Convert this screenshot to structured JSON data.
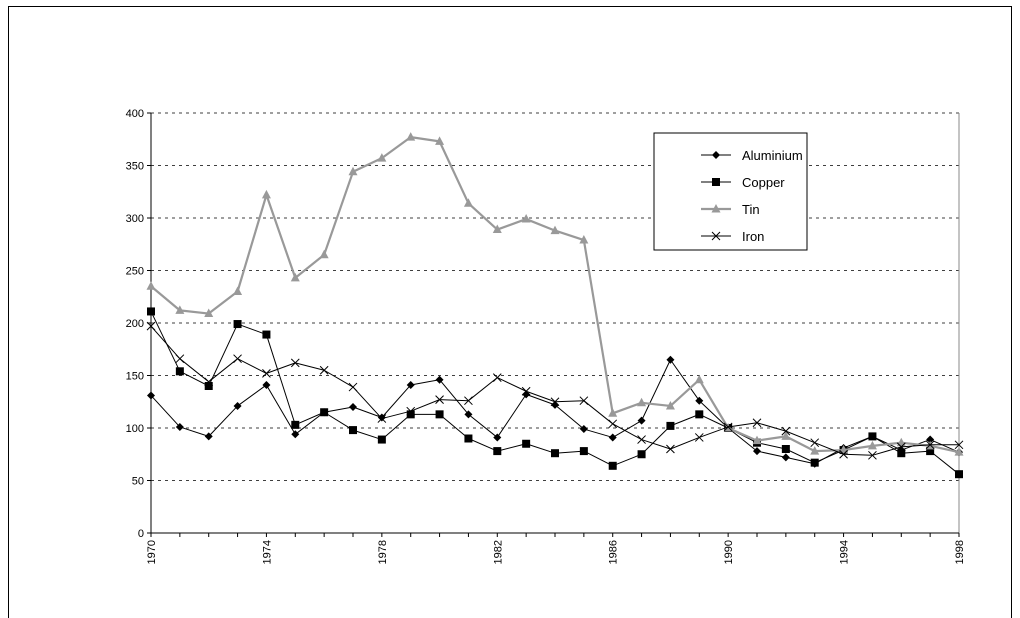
{
  "chart_data": {
    "type": "line",
    "title": "",
    "xlabel": "",
    "ylabel": "",
    "ylim": [
      0,
      400
    ],
    "yticks": [
      0,
      50,
      100,
      150,
      200,
      250,
      300,
      350,
      400
    ],
    "xlim": [
      1970,
      1998
    ],
    "xtick_labels": [
      "1970",
      "1974",
      "1978",
      "1982",
      "1986",
      "1990",
      "1994",
      "1998"
    ],
    "grid": "horizontal dashed",
    "legend_position": "top-right",
    "x": [
      1970,
      1971,
      1972,
      1973,
      1974,
      1975,
      1976,
      1977,
      1978,
      1979,
      1980,
      1981,
      1982,
      1983,
      1984,
      1985,
      1986,
      1987,
      1988,
      1989,
      1990,
      1991,
      1992,
      1993,
      1994,
      1995,
      1996,
      1997,
      1998
    ],
    "series": [
      {
        "name": "Aluminium",
        "marker": "diamond",
        "color": "#000000",
        "values": [
          131,
          101,
          92,
          121,
          141,
          94,
          115,
          120,
          110,
          141,
          146,
          113,
          91,
          132,
          122,
          99,
          91,
          107,
          165,
          126,
          100,
          78,
          72,
          66,
          81,
          92,
          79,
          89,
          77
        ]
      },
      {
        "name": "Copper",
        "marker": "square",
        "color": "#000000",
        "values": [
          211,
          154,
          140,
          199,
          189,
          103,
          115,
          98,
          89,
          113,
          113,
          90,
          78,
          85,
          76,
          78,
          64,
          75,
          102,
          113,
          100,
          86,
          80,
          67,
          79,
          92,
          76,
          78,
          56
        ]
      },
      {
        "name": "Tin",
        "marker": "triangle",
        "color": "#999999",
        "values": [
          235,
          212,
          209,
          230,
          322,
          243,
          265,
          344,
          357,
          377,
          373,
          314,
          289,
          299,
          288,
          279,
          114,
          124,
          121,
          146,
          100,
          88,
          92,
          78,
          79,
          83,
          86,
          83,
          77
        ]
      },
      {
        "name": "Iron",
        "marker": "x",
        "color": "#000000",
        "values": [
          197,
          166,
          144,
          166,
          152,
          162,
          155,
          139,
          109,
          116,
          127,
          126,
          148,
          135,
          125,
          126,
          104,
          89,
          80,
          91,
          101,
          105,
          97,
          86,
          75,
          74,
          82,
          84,
          84
        ]
      }
    ]
  }
}
